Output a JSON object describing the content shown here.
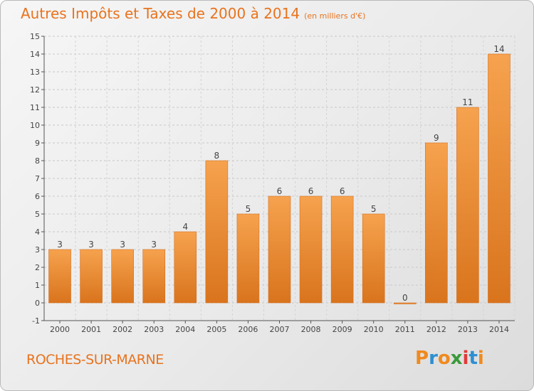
{
  "title": "Autres Impôts et Taxes de 2000 à 2014",
  "unit_label": "(en milliers d'€)",
  "commune": "ROCHES-SUR-MARNE",
  "logo": {
    "text": "Proxiti",
    "letter_colors": [
      "#f08a1e",
      "#2e8fd0",
      "#f08a1e",
      "#3a9a3a",
      "#e23a3a",
      "#2e8fd0",
      "#f08a1e"
    ]
  },
  "colors": {
    "accent": "#e8731e",
    "bar_light": "#f6a24e",
    "bar_dark": "#d9741d"
  },
  "chart_data": {
    "type": "bar",
    "title": "Autres Impôts et Taxes de 2000 à 2014",
    "xlabel": "",
    "ylabel": "",
    "ylim": [
      -1,
      15
    ],
    "yticks": [
      -1,
      0,
      1,
      2,
      3,
      4,
      5,
      6,
      7,
      8,
      9,
      10,
      11,
      12,
      13,
      14,
      15
    ],
    "grid": true,
    "categories": [
      "2000",
      "2001",
      "2002",
      "2003",
      "2004",
      "2005",
      "2006",
      "2007",
      "2008",
      "2009",
      "2010",
      "2011",
      "2012",
      "2013",
      "2014"
    ],
    "values": [
      3,
      3,
      3,
      3,
      4,
      8,
      5,
      6,
      6,
      6,
      5,
      0,
      9,
      11,
      14
    ],
    "value_labels": [
      "3",
      "3",
      "3",
      "3",
      "4",
      "8",
      "5",
      "6",
      "6",
      "6",
      "5",
      "0",
      "9",
      "11",
      "14"
    ]
  }
}
